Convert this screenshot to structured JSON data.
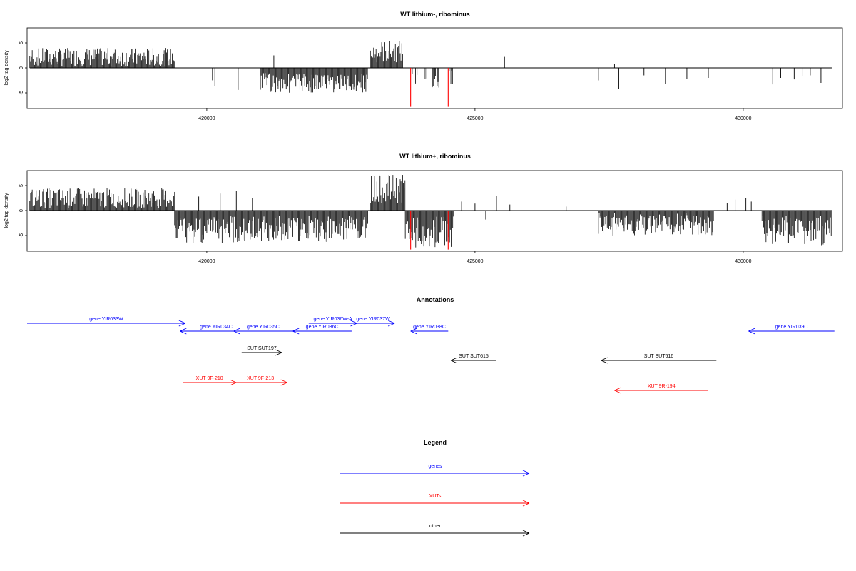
{
  "chart_data": [
    {
      "type": "bar",
      "title": "WT lithium-, ribominus",
      "xlabel": "",
      "ylabel": "log2 tag density",
      "xlim": [
        416650,
        431850
      ],
      "ylim": [
        -8,
        8
      ],
      "x_ticks": [
        420000,
        425000,
        430000
      ],
      "x_tick_labels": [
        "420000",
        "425000",
        "430000"
      ],
      "y_ticks": [
        -5,
        0,
        5
      ],
      "y_tick_labels": [
        "-5",
        "0",
        "5"
      ],
      "highlight_color": "#ff0000",
      "bar_color": "#000000",
      "series": [
        {
          "values_x_range": [
            416700,
            419400
          ],
          "density": 1.0,
          "sign": 1,
          "min": 0.3,
          "max": 4.0
        },
        {
          "values_x_range": [
            419400,
            420700
          ],
          "density": 0.05,
          "sign": -1,
          "min": 0.5,
          "max": 4.5
        },
        {
          "values_x_range": [
            421000,
            423000
          ],
          "density": 1.0,
          "sign": -1,
          "min": 1.0,
          "max": 5.0
        },
        {
          "values_x_range": [
            423050,
            423650
          ],
          "density": 1.0,
          "sign": 1,
          "min": 1.0,
          "max": 5.5
        },
        {
          "values_x_range": [
            423800,
            424600
          ],
          "density": 0.25,
          "sign": -1,
          "min": 0.5,
          "max": 4.0
        }
      ],
      "isolated_bars": [
        {
          "x": 421250,
          "y": 2.5
        },
        {
          "x": 425550,
          "y": 2.2
        },
        {
          "x": 427600,
          "y": 0.8
        },
        {
          "x": 427300,
          "y": -2.5
        },
        {
          "x": 427680,
          "y": -4.2
        },
        {
          "x": 428150,
          "y": -1.5
        },
        {
          "x": 428550,
          "y": -3.2
        },
        {
          "x": 428950,
          "y": -2.2
        },
        {
          "x": 429350,
          "y": -2.0
        },
        {
          "x": 430500,
          "y": -3.0
        },
        {
          "x": 430550,
          "y": -3.3
        },
        {
          "x": 430700,
          "y": -2.0
        },
        {
          "x": 430950,
          "y": -2.3
        },
        {
          "x": 431100,
          "y": -1.6
        },
        {
          "x": 431250,
          "y": -1.5
        },
        {
          "x": 431450,
          "y": -3.0
        }
      ],
      "highlighted_bars": [
        {
          "x": 423800,
          "y": -7.8
        },
        {
          "x": 424500,
          "y": -7.8
        }
      ]
    },
    {
      "type": "bar",
      "title": "WT lithium+, ribominus",
      "xlabel": "",
      "ylabel": "log2 tag density",
      "xlim": [
        416650,
        431850
      ],
      "ylim": [
        -8,
        8
      ],
      "x_ticks": [
        420000,
        425000,
        430000
      ],
      "x_tick_labels": [
        "420000",
        "425000",
        "430000"
      ],
      "y_ticks": [
        -5,
        0,
        5
      ],
      "y_tick_labels": [
        "-5",
        "0",
        "5"
      ],
      "highlight_color": "#ff0000",
      "bar_color": "#000000",
      "series": [
        {
          "values_x_range": [
            416700,
            419400
          ],
          "density": 1.0,
          "sign": 1,
          "min": 0.5,
          "max": 4.5
        },
        {
          "values_x_range": [
            419400,
            423000
          ],
          "density": 1.0,
          "sign": -1,
          "min": 1.0,
          "max": 6.5
        },
        {
          "values_x_range": [
            423050,
            423700
          ],
          "density": 1.0,
          "sign": 1,
          "min": 1.5,
          "max": 7.2
        },
        {
          "values_x_range": [
            423700,
            424600
          ],
          "density": 1.0,
          "sign": -1,
          "min": 1.0,
          "max": 7.5
        },
        {
          "values_x_range": [
            427300,
            429450
          ],
          "density": 1.0,
          "sign": -1,
          "min": 0.5,
          "max": 5.0
        },
        {
          "values_x_range": [
            430350,
            431650
          ],
          "density": 1.0,
          "sign": -1,
          "min": 1.0,
          "max": 7.0
        }
      ],
      "isolated_bars": [
        {
          "x": 419850,
          "y": 2.8
        },
        {
          "x": 420250,
          "y": 3.4
        },
        {
          "x": 420550,
          "y": 4.0
        },
        {
          "x": 420850,
          "y": 2.5
        },
        {
          "x": 424750,
          "y": 1.8
        },
        {
          "x": 425000,
          "y": 1.4
        },
        {
          "x": 425200,
          "y": -1.8
        },
        {
          "x": 425400,
          "y": 3.0
        },
        {
          "x": 425650,
          "y": 1.2
        },
        {
          "x": 426700,
          "y": 0.8
        },
        {
          "x": 429700,
          "y": 1.5
        },
        {
          "x": 429850,
          "y": 2.2
        },
        {
          "x": 430050,
          "y": 2.5
        },
        {
          "x": 430150,
          "y": 1.8
        }
      ],
      "highlighted_bars": [
        {
          "x": 423800,
          "y": -7.8
        },
        {
          "x": 424500,
          "y": -7.8
        }
      ]
    },
    {
      "type": "annotation-track",
      "title": "Annotations",
      "xlim": [
        416650,
        431850
      ],
      "features": [
        {
          "label": "gene YIR033W",
          "x0": 416650,
          "x1": 419600,
          "row": 0,
          "dir": "right",
          "color": "#0000ff"
        },
        {
          "label": "gene YIR034C",
          "x0": 419500,
          "x1": 420850,
          "row": 1,
          "dir": "left",
          "color": "#0000ff"
        },
        {
          "label": "gene YIR035C",
          "x0": 420500,
          "x1": 421600,
          "row": 1,
          "dir": "left",
          "color": "#0000ff"
        },
        {
          "label": "gene YIR036C",
          "x0": 421600,
          "x1": 422700,
          "row": 1,
          "dir": "left",
          "color": "#0000ff"
        },
        {
          "label": "gene YIR036W-A",
          "x0": 421900,
          "x1": 422800,
          "row": 0,
          "dir": "right",
          "color": "#0000ff"
        },
        {
          "label": "gene YIR037W",
          "x0": 422700,
          "x1": 423500,
          "row": 0,
          "dir": "right",
          "color": "#0000ff"
        },
        {
          "label": "gene YIR038C",
          "x0": 423800,
          "x1": 424500,
          "row": 1,
          "dir": "left",
          "color": "#0000ff"
        },
        {
          "label": "gene YIR039C",
          "x0": 430100,
          "x1": 431700,
          "row": 1,
          "dir": "left",
          "color": "#0000ff"
        },
        {
          "label": "SUT SUT197",
          "x0": 420650,
          "x1": 421400,
          "row": 2,
          "dir": "right",
          "color": "#000000"
        },
        {
          "label": "SUT SUT615",
          "x0": 424550,
          "x1": 425400,
          "row": 3,
          "dir": "left",
          "color": "#000000"
        },
        {
          "label": "SUT SUT616",
          "x0": 427350,
          "x1": 429500,
          "row": 3,
          "dir": "left",
          "color": "#000000"
        },
        {
          "label": "XUT 9F-210",
          "x0": 419550,
          "x1": 420550,
          "row": 4,
          "dir": "right",
          "color": "#ff0000"
        },
        {
          "label": "XUT 9F-213",
          "x0": 420500,
          "x1": 421500,
          "row": 4,
          "dir": "right",
          "color": "#ff0000"
        },
        {
          "label": "XUT 9R-194",
          "x0": 427600,
          "x1": 429350,
          "row": 5,
          "dir": "left",
          "color": "#ff0000"
        }
      ]
    },
    {
      "type": "legend",
      "title": "Legend",
      "entries": [
        {
          "label": "genes",
          "color": "#0000ff"
        },
        {
          "label": "XUTs",
          "color": "#ff0000"
        },
        {
          "label": "other",
          "color": "#000000"
        }
      ]
    }
  ]
}
